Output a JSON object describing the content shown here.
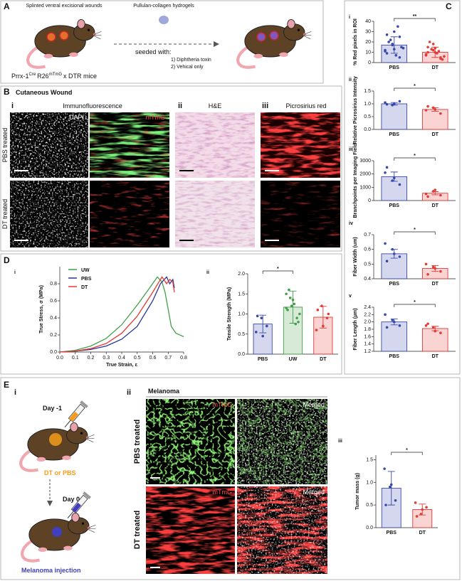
{
  "figure": {
    "a": {
      "label": "A",
      "wounds": "Splinted ventral excisional wounds",
      "hydrogel": "Pullulan-collagen hydrogels",
      "seeded": "seeded with:",
      "opt1": "1) Diphtheria toxin",
      "opt2": "2) Vehical only",
      "mouse": [
        "Prrx-1",
        "Cre",
        "R26",
        "mTmG",
        "x DTR mice"
      ]
    },
    "b": {
      "label": "B",
      "title": "Cutaneous Wound",
      "i": "i",
      "if": "Immunofluorescence",
      "ii": "ii",
      "he": "H&E",
      "iii": "iii",
      "ps": "Picrosirius red",
      "dapi": "DAPI",
      "mtmg": "mTmG",
      "pbs": "PBS treated",
      "dt": "DT treated"
    },
    "c": {
      "label": "C"
    },
    "d": {
      "label": "D"
    },
    "e": {
      "label": "E",
      "i": "i",
      "day1": "Day -1",
      "treat": "DT or PBS",
      "day0": "Day 0",
      "inj": "Melanoma injection",
      "ii": "ii",
      "mel": "Melanoma",
      "mtmg": "mTmG",
      "merged": "Merged",
      "pbs": "PBS treated",
      "dt": "DT treated"
    }
  },
  "chart_data": [
    {
      "type": "bar",
      "panel": "i",
      "ylabel": "% Red pixels in ROI",
      "categories": [
        "PBS",
        "DT"
      ],
      "values": [
        17,
        10
      ],
      "errors": [
        8,
        5
      ],
      "colors": [
        "#3949ab",
        "#e53935"
      ],
      "points": [
        [
          12,
          18,
          25,
          9,
          30,
          15,
          20,
          7,
          14,
          22,
          35,
          11,
          17,
          5,
          27,
          13
        ],
        [
          8,
          12,
          5,
          15,
          10,
          3,
          20,
          9,
          6,
          13,
          11,
          7,
          18,
          4,
          10,
          14
        ]
      ],
      "ylim": [
        0,
        40
      ],
      "yticks": [
        0,
        10,
        20,
        30,
        40
      ],
      "significance": {
        "label": "**",
        "from": "PBS",
        "to": "DT"
      }
    },
    {
      "type": "bar",
      "panel": "ii",
      "ylabel": "Relative Picrosirius Intensity",
      "categories": [
        "PBS",
        "DT"
      ],
      "values": [
        1.0,
        0.78
      ],
      "errors": [
        0.05,
        0.07
      ],
      "colors": [
        "#3949ab",
        "#e53935"
      ],
      "points": [
        [
          1.05,
          0.95,
          1.1,
          0.98,
          1.0
        ],
        [
          0.75,
          0.85,
          0.62,
          0.9,
          0.78
        ]
      ],
      "ylim": [
        0,
        1.5
      ],
      "yticks": [
        {
          "value": 0,
          "label": "0.0"
        },
        0.5,
        {
          "value": 1,
          "label": "1.0"
        },
        1.5
      ],
      "significance": {
        "label": "*",
        "from": "PBS",
        "to": "DT"
      }
    },
    {
      "type": "bar",
      "panel": "iii",
      "ylabel": "Branchpoints per Imaging Field",
      "categories": [
        "PBS",
        "DT"
      ],
      "values": [
        1800,
        550
      ],
      "errors": [
        350,
        120
      ],
      "colors": [
        "#3949ab",
        "#e53935"
      ],
      "points": [
        [
          2100,
          1500,
          1200,
          2500,
          1700
        ],
        [
          500,
          700,
          400,
          300,
          800
        ]
      ],
      "ylim": [
        0,
        3000
      ],
      "yticks": [
        0,
        1000,
        2000,
        3000
      ],
      "significance": {
        "label": "*",
        "from": "PBS",
        "to": "DT"
      }
    },
    {
      "type": "bar",
      "panel": "iv",
      "ylabel": "Fiber Width (um)",
      "categories": [
        "PBS",
        "DT"
      ],
      "values": [
        0.57,
        0.47
      ],
      "errors": [
        0.03,
        0.02
      ],
      "colors": [
        "#3949ab",
        "#e53935"
      ],
      "points": [
        [
          0.64,
          0.6,
          0.55,
          0.52,
          0.57
        ],
        [
          0.5,
          0.48,
          0.45,
          0.43,
          0.47
        ]
      ],
      "ylim": [
        0.4,
        0.7
      ],
      "yticks": [
        0.4,
        0.5,
        0.6,
        0.7
      ],
      "significance": {
        "label": "*",
        "from": "PBS",
        "to": "DT"
      }
    },
    {
      "type": "bar",
      "panel": "v",
      "ylabel": "Fiber Length (µm)",
      "categories": [
        "PBS",
        "DT"
      ],
      "values": [
        2.0,
        1.82
      ],
      "errors": [
        0.08,
        0.06
      ],
      "colors": [
        "#3949ab",
        "#e53935"
      ],
      "points": [
        [
          2.2,
          2.05,
          1.9,
          1.85,
          2.0
        ],
        [
          1.9,
          1.85,
          1.7,
          1.95,
          1.75
        ]
      ],
      "ylim": [
        1.2,
        2.4
      ],
      "yticks": [
        1.2,
        1.4,
        1.6,
        1.8,
        {
          "value": 2,
          "label": "2.0"
        },
        2.2,
        2.4
      ],
      "significance": {
        "label": "*",
        "from": "PBS",
        "to": "DT"
      }
    },
    {
      "type": "line",
      "panel": "i",
      "ylabel": "True Stress, σ (MPa)",
      "xlabel": "True Strain, ε",
      "legend": "upper left",
      "series": [
        {
          "name": "UW",
          "color": "#43a047",
          "x": [
            0,
            0.1,
            0.2,
            0.3,
            0.4,
            0.5,
            0.58,
            0.63,
            0.66,
            0.68,
            0.7,
            0.72,
            0.75,
            0.8
          ],
          "values": [
            0,
            0.02,
            0.07,
            0.16,
            0.32,
            0.55,
            0.75,
            0.88,
            0.82,
            0.7,
            0.5,
            0.3,
            0.22,
            0.18
          ]
        },
        {
          "name": "PBS",
          "color": "#283593",
          "x": [
            0,
            0.1,
            0.2,
            0.3,
            0.4,
            0.5,
            0.6,
            0.65,
            0.69,
            0.71,
            0.73,
            0.74
          ],
          "values": [
            0,
            0.01,
            0.03,
            0.07,
            0.15,
            0.3,
            0.6,
            0.8,
            0.88,
            0.8,
            0.85,
            0.75
          ]
        },
        {
          "name": "DT",
          "color": "#e53935",
          "x": [
            0,
            0.1,
            0.2,
            0.3,
            0.4,
            0.5,
            0.6,
            0.66,
            0.69,
            0.71,
            0.73,
            0.74
          ],
          "values": [
            0,
            0.01,
            0.04,
            0.1,
            0.22,
            0.42,
            0.7,
            0.88,
            0.8,
            0.85,
            0.82,
            0.7
          ]
        }
      ],
      "xlim": [
        0,
        0.8
      ],
      "xticks": [
        {
          "value": 0,
          "label": "0.0"
        },
        0.1,
        0.2,
        0.3,
        0.4,
        0.5,
        0.6,
        0.7,
        0.8
      ],
      "ylim": [
        0,
        1.0
      ],
      "yticks": [
        {
          "value": 0,
          "label": "0.0"
        },
        0.2,
        0.4,
        0.6,
        0.8
      ]
    },
    {
      "type": "bar",
      "panel": "ii",
      "ylabel": "Tensile Strength (MPa)",
      "categories": [
        "PBS",
        "UW",
        "DT"
      ],
      "values": [
        0.75,
        1.17,
        0.92
      ],
      "errors": [
        0.22,
        0.4,
        0.27
      ],
      "colors": [
        "#3949ab",
        "#43a047",
        "#e53935"
      ],
      "points": [
        [
          0.55,
          0.9,
          0.7,
          0.95,
          0.45
        ],
        [
          1.5,
          1.2,
          0.9,
          1.1,
          1.35,
          0.8,
          1.6,
          1.25,
          1.0,
          1.4,
          0.75,
          1.15
        ],
        [
          0.6,
          1.2,
          0.9,
          1.1,
          0.7,
          1.0
        ]
      ],
      "ylim": [
        0,
        2.0
      ],
      "yticks": [
        {
          "value": 0,
          "label": "0.0"
        },
        0.5,
        {
          "value": 1,
          "label": "1.0"
        },
        1.5,
        {
          "value": 2,
          "label": "2.0"
        }
      ],
      "significance": {
        "label": "*",
        "from": "PBS",
        "to": "UW"
      }
    },
    {
      "type": "bar",
      "panel": "iii",
      "ylabel": "Tumor mass (g)",
      "categories": [
        "PBS",
        "DT"
      ],
      "values": [
        0.87,
        0.4
      ],
      "errors": [
        0.37,
        0.12
      ],
      "colors": [
        "#3949ab",
        "#e53935"
      ],
      "points": [
        [
          1.3,
          0.9,
          0.6,
          0.5,
          0.95
        ],
        [
          0.55,
          0.3,
          0.45,
          0.25,
          0.4
        ]
      ],
      "ylim": [
        0,
        1.6
      ],
      "yticks": [
        {
          "value": 0,
          "label": "0.0"
        },
        0.5,
        {
          "value": 1,
          "label": "1.0"
        },
        1.5
      ],
      "significance": {
        "label": "*",
        "from": "PBS",
        "to": "DT"
      }
    }
  ]
}
